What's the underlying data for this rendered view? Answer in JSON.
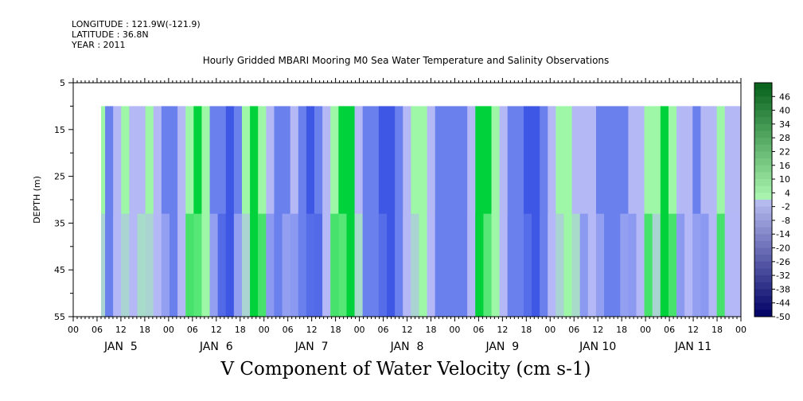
{
  "header": {
    "longitude": "LONGITUDE : 121.9W(-121.9)",
    "latitude": "LATITUDE : 36.8N",
    "year": "YEAR : 2011"
  },
  "chart_data": {
    "type": "heatmap",
    "title": "Hourly Gridded MBARI Mooring M0 Sea Water Temperature and Salinity Observations",
    "xlabel": "V Component of Water Velocity (cm s-1)",
    "ylabel": "DEPTH (m)",
    "y_ticks": [
      "5",
      "15",
      "25",
      "35",
      "45",
      "55"
    ],
    "ylim": [
      55,
      5
    ],
    "x_hour_ticks": [
      "00",
      "06",
      "12",
      "18",
      "00",
      "06",
      "12",
      "18",
      "00",
      "06",
      "12",
      "18",
      "00",
      "06",
      "12",
      "18",
      "00",
      "06",
      "12",
      "18",
      "00",
      "06",
      "12",
      "18",
      "00",
      "06",
      "12",
      "18",
      "00"
    ],
    "x_day_labels": [
      "JAN  5",
      "JAN  6",
      "JAN  7",
      "JAN  8",
      "JAN  9",
      "JAN 10",
      "JAN 11"
    ],
    "data_depth_range": [
      10,
      55
    ],
    "data_time_start_hour": 6,
    "colorbar": {
      "levels": [
        "46",
        "40",
        "34",
        "28",
        "22",
        "16",
        "10",
        "4",
        "-2",
        "-8",
        "-14",
        "-20",
        "-26",
        "-32",
        "-38",
        "-44",
        "-50"
      ],
      "range": [
        -50,
        52
      ]
    },
    "value_columns": [
      1,
      -9,
      -5,
      5,
      -7,
      -4,
      3,
      -8,
      -11,
      -12,
      -3,
      5,
      8,
      2,
      -12,
      -18,
      -20,
      -10,
      3,
      6,
      4,
      -8,
      -12,
      -9,
      -4,
      -14,
      -20,
      -18,
      -8,
      5,
      10,
      7,
      -4,
      -9,
      -14,
      -22,
      -24,
      -18,
      -8,
      2,
      3,
      -5,
      -9,
      -13,
      -16,
      -10,
      -3,
      8,
      9,
      5,
      -5,
      -12,
      -16,
      -20,
      -19,
      -13,
      -5,
      3,
      2,
      -3,
      -8,
      -8,
      -10,
      -13,
      -12,
      -9,
      -4,
      -2,
      1,
      4,
      6,
      3,
      -4,
      -8,
      -12,
      -6,
      -2,
      2,
      0,
      -3
    ],
    "colors": {
      "strong_positive": "#00d23c",
      "positive": "#9ef7a6",
      "near_zero": "#b4b8f5",
      "negative": "#6a80ec",
      "strong_negative": "#3e57e4"
    }
  }
}
